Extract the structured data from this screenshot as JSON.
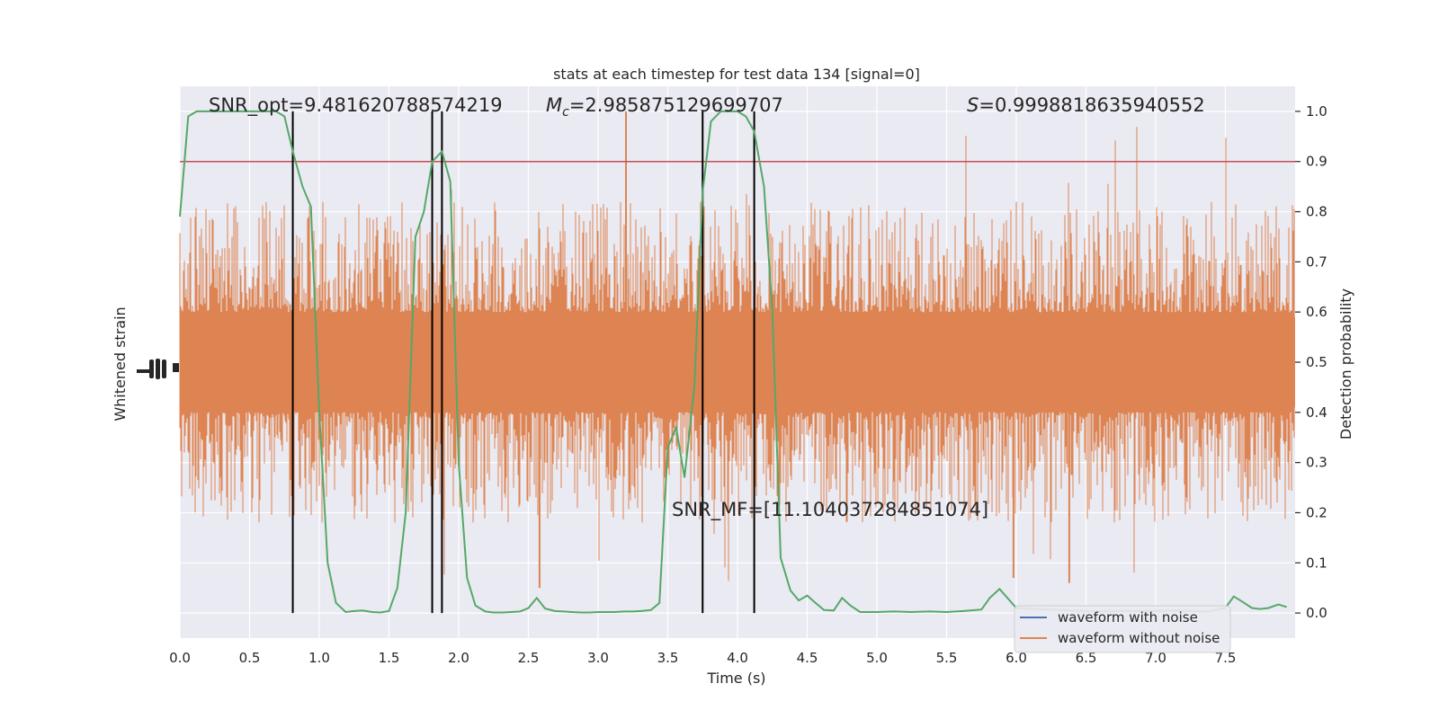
{
  "chart_data": {
    "type": "line",
    "title": "stats at each timestep for test data 134 [signal=0]",
    "xlabel": "Time (s)",
    "ylabel_left": "Whitened strain",
    "ylabel_right": "Detection probability",
    "xlim": [
      0,
      8
    ],
    "ylim_right": [
      -0.05,
      1.05
    ],
    "x_ticks": [
      "0.0",
      "0.5",
      "1.0",
      "1.5",
      "2.0",
      "2.5",
      "3.0",
      "3.5",
      "4.0",
      "4.5",
      "5.0",
      "5.5",
      "6.0",
      "6.5",
      "7.0",
      "7.5"
    ],
    "y_ticks_right": [
      "0.0",
      "0.1",
      "0.2",
      "0.3",
      "0.4",
      "0.5",
      "0.6",
      "0.7",
      "0.8",
      "0.9",
      "1.0"
    ],
    "grid": true,
    "legend_position": "lower right",
    "annotations": {
      "snr_opt": "SNR_opt=9.481620788574219",
      "mc_symbol": "M",
      "mc_subscript": "c",
      "mc_value": "=2.985875129699707",
      "s_symbol": "S",
      "s_value": "=0.9998818635940552",
      "snr_mf": "SNR_MF=[11.104037284851074]"
    },
    "threshold": 0.9,
    "vertical_lines": [
      0.81,
      1.81,
      1.88,
      3.75,
      4.12
    ],
    "detection_probability": {
      "x": [
        0.0,
        0.06,
        0.12,
        0.25,
        0.5,
        0.6,
        0.69,
        0.75,
        0.81,
        0.88,
        0.94,
        1.0,
        1.06,
        1.12,
        1.19,
        1.25,
        1.31,
        1.38,
        1.44,
        1.5,
        1.56,
        1.62,
        1.69,
        1.75,
        1.81,
        1.88,
        1.94,
        2.0,
        2.06,
        2.12,
        2.19,
        2.25,
        2.31,
        2.38,
        2.44,
        2.5,
        2.56,
        2.62,
        2.69,
        2.75,
        2.81,
        2.88,
        2.94,
        3.0,
        3.06,
        3.12,
        3.19,
        3.25,
        3.31,
        3.38,
        3.44,
        3.5,
        3.56,
        3.62,
        3.69,
        3.75,
        3.81,
        3.88,
        3.94,
        4.0,
        4.06,
        4.12,
        4.19,
        4.25,
        4.31,
        4.38,
        4.44,
        4.5,
        4.56,
        4.62,
        4.69,
        4.75,
        4.81,
        4.88,
        5.0,
        5.12,
        5.25,
        5.38,
        5.5,
        5.62,
        5.75,
        5.81,
        5.88,
        6.0,
        6.12,
        6.25,
        6.38,
        6.5,
        6.62,
        6.75,
        6.88,
        7.0,
        7.12,
        7.25,
        7.38,
        7.5,
        7.56,
        7.62,
        7.69,
        7.75,
        7.81,
        7.88,
        7.94
      ],
      "y": [
        0.79,
        0.99,
        1.0,
        1.0,
        1.0,
        1.0,
        1.0,
        0.99,
        0.92,
        0.85,
        0.81,
        0.4,
        0.1,
        0.02,
        0.002,
        0.004,
        0.005,
        0.002,
        0.001,
        0.004,
        0.05,
        0.2,
        0.75,
        0.8,
        0.9,
        0.92,
        0.86,
        0.3,
        0.07,
        0.015,
        0.003,
        0.001,
        0.001,
        0.002,
        0.003,
        0.01,
        0.03,
        0.009,
        0.004,
        0.003,
        0.002,
        0.001,
        0.001,
        0.002,
        0.002,
        0.002,
        0.003,
        0.003,
        0.004,
        0.006,
        0.02,
        0.33,
        0.37,
        0.27,
        0.45,
        0.84,
        0.98,
        1.0,
        1.0,
        1.0,
        0.99,
        0.96,
        0.85,
        0.6,
        0.11,
        0.045,
        0.025,
        0.035,
        0.02,
        0.006,
        0.005,
        0.03,
        0.015,
        0.002,
        0.002,
        0.003,
        0.002,
        0.003,
        0.002,
        0.004,
        0.007,
        0.03,
        0.048,
        0.01,
        0.008,
        0.007,
        0.005,
        0.004,
        0.003,
        0.004,
        0.004,
        0.004,
        0.005,
        0.004,
        0.003,
        0.01,
        0.033,
        0.023,
        0.01,
        0.008,
        0.01,
        0.017,
        0.012
      ]
    },
    "strain_band": {
      "center": 0.5,
      "typical_low": 0.3,
      "typical_high": 0.7,
      "max_spike": 1.0,
      "min_spike": 0.05
    },
    "series": [
      {
        "name": "waveform with noise",
        "color": "#4c72b0"
      },
      {
        "name": "waveform without noise",
        "color": "#dd8452"
      },
      {
        "name": "detection probability",
        "color": "#55a868"
      }
    ],
    "colors": {
      "background": "#eaeaf2",
      "grid": "#ffffff",
      "threshold": "#c44e52",
      "vertical_line": "#000000"
    }
  }
}
